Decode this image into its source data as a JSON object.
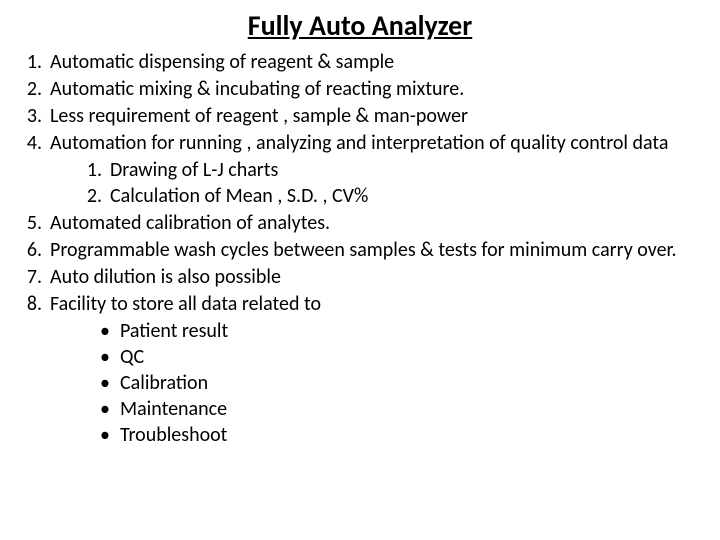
{
  "title": "Fully Auto Analyzer",
  "items": [
    {
      "num": "1.",
      "text": "Automatic dispensing of reagent & sample"
    },
    {
      "num": "2.",
      "text": "Automatic mixing  & incubating of reacting mixture."
    },
    {
      "num": "3.",
      "text": "Less requirement of reagent , sample & man-power"
    },
    {
      "num": "4.",
      "text": "Automation for running , analyzing  and interpretation of quality control data"
    },
    {
      "num": "5.",
      "text": "Automated calibration of analytes."
    },
    {
      "num": "6.",
      "text": " Programmable wash cycles between samples & tests for minimum carry over."
    },
    {
      "num": "7.",
      "text": " Auto dilution is also possible"
    },
    {
      "num": "8.",
      "text": " Facility to store all data related to"
    }
  ],
  "sub4": [
    {
      "num": "1.",
      "text": "Drawing of L-J charts"
    },
    {
      "num": "2.",
      "text": "Calculation of Mean , S.D. , CV%"
    }
  ],
  "sub8": [
    {
      "bullet": "•",
      "text": "Patient result"
    },
    {
      "bullet": "•",
      "text": "QC"
    },
    {
      "bullet": "•",
      "text": "Calibration"
    },
    {
      "bullet": "•",
      "text": "Maintenance"
    },
    {
      "bullet": "•",
      "text": "Troubleshoot"
    }
  ]
}
